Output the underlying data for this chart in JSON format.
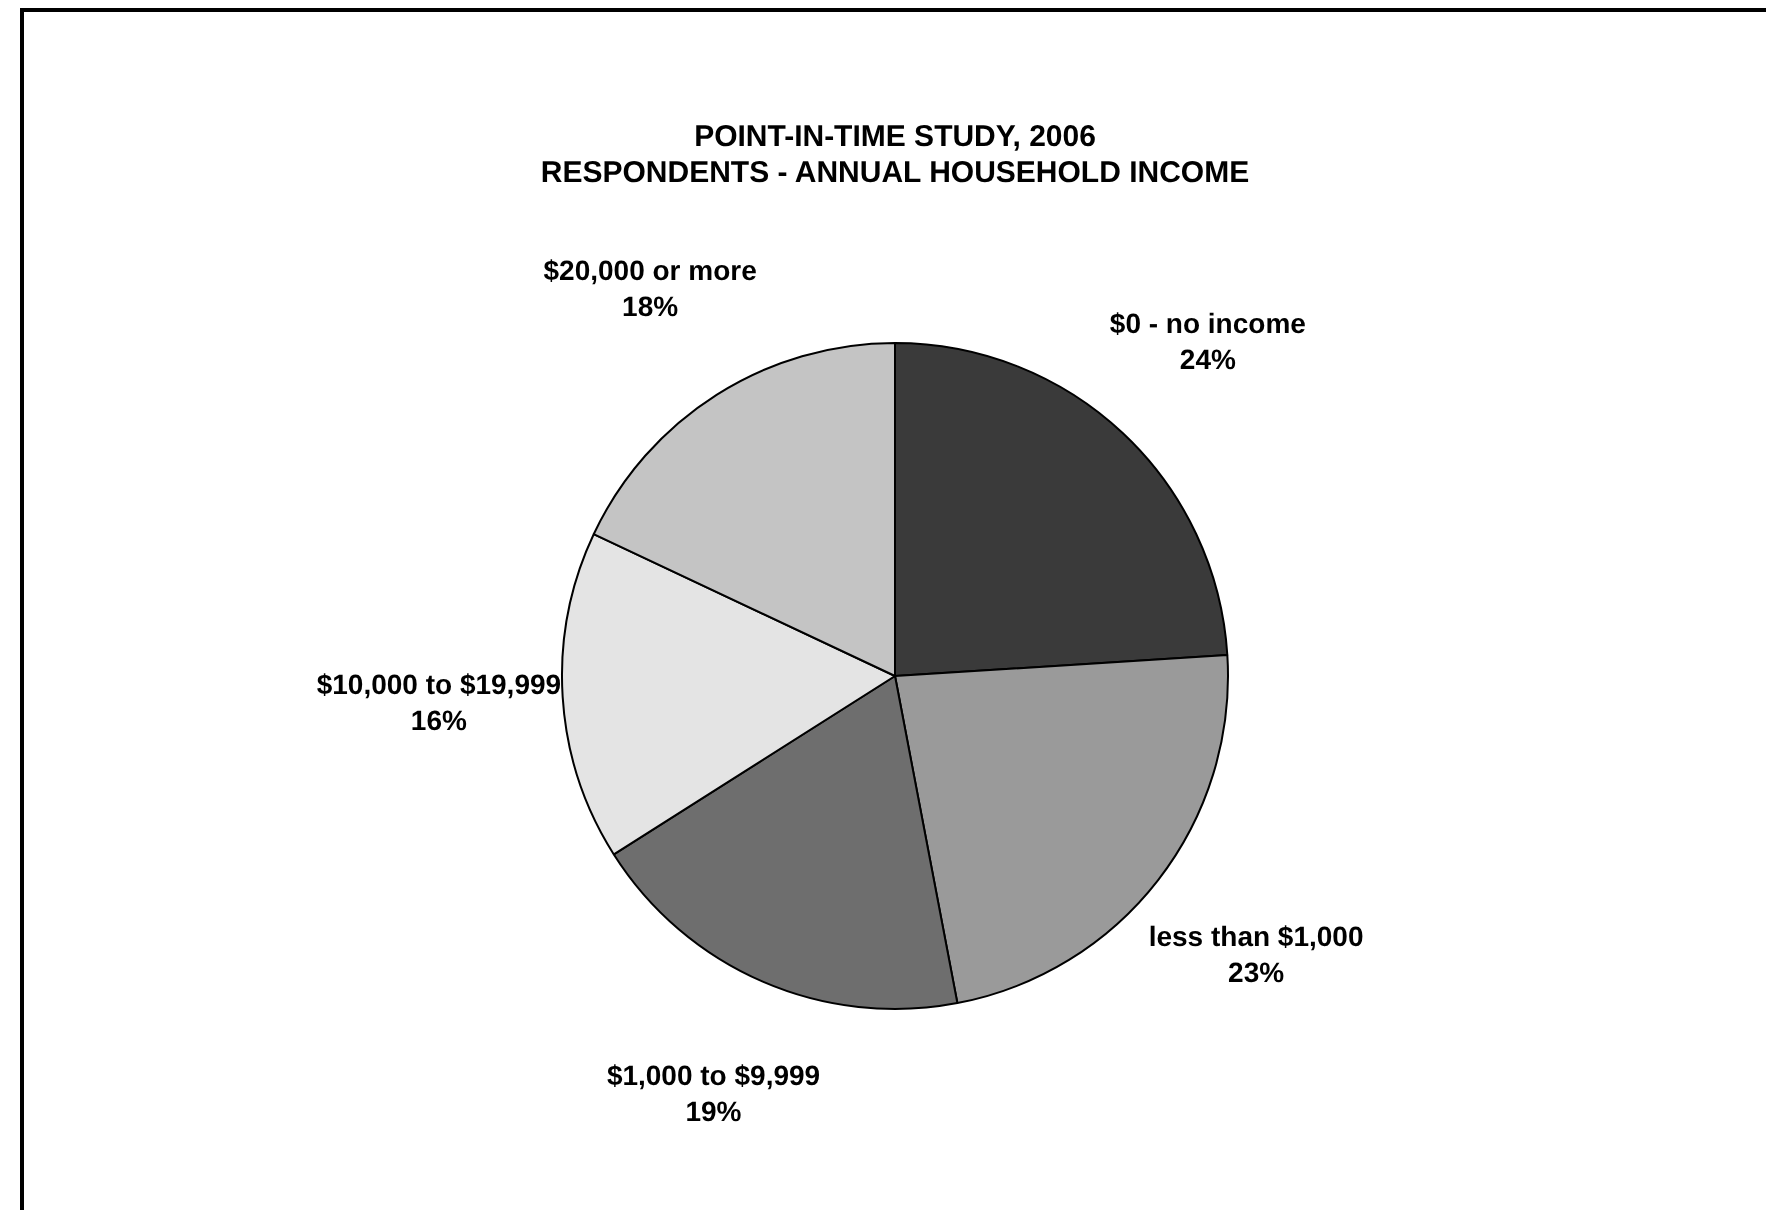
{
  "chart_data": {
    "type": "pie",
    "title": [
      "POINT-IN-TIME STUDY, 2006",
      "RESPONDENTS - ANNUAL HOUSEHOLD INCOME"
    ],
    "categories": [
      "$0 - no income",
      "less than $1,000",
      "$1,000 to $9,999",
      "$10,000 to $19,999",
      "$20,000 or more"
    ],
    "values": [
      24,
      23,
      19,
      16,
      18
    ],
    "colors": [
      "#3a3a3a",
      "#9a9a9a",
      "#6e6e6e",
      "#e4e4e4",
      "#c4c4c4"
    ],
    "value_labels": [
      "24%",
      "23%",
      "19%",
      "16%",
      "18%"
    ],
    "legend": false
  }
}
